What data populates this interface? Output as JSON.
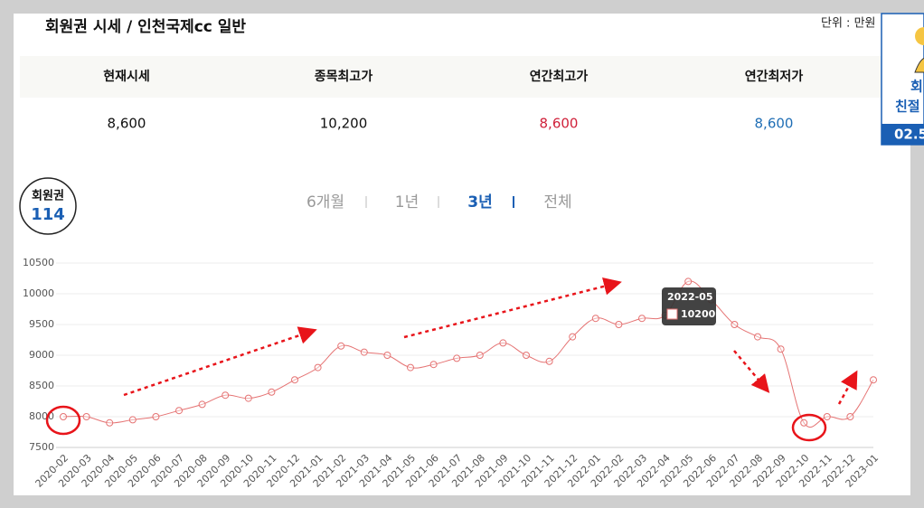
{
  "header": {
    "title": "회원권 시세 / 인천국제cc 일반",
    "unit": "단위 : 만원"
  },
  "table": {
    "headers": [
      "현재시세",
      "종목최고가",
      "연간최고가",
      "연간최저가"
    ],
    "rows": [
      [
        "8,600",
        "10,200",
        "8,600",
        "8,600"
      ]
    ]
  },
  "logo": {
    "top": "회원권",
    "bottom": "114"
  },
  "tabs": [
    "6개월",
    "1년",
    "3년",
    "전체"
  ],
  "side": {
    "lines": [
      "회",
      "친절",
      "02.5"
    ]
  },
  "chart_data": {
    "type": "line",
    "x": [
      "2020-02",
      "2020-03",
      "2020-04",
      "2020-05",
      "2020-06",
      "2020-07",
      "2020-08",
      "2020-09",
      "2020-10",
      "2020-11",
      "2020-12",
      "2021-01",
      "2021-02",
      "2021-03",
      "2021-04",
      "2021-05",
      "2021-06",
      "2021-07",
      "2021-08",
      "2021-09",
      "2021-10",
      "2021-11",
      "2021-12",
      "2022-01",
      "2022-02",
      "2022-03",
      "2022-04",
      "2022-05",
      "2022-06",
      "2022-07",
      "2022-08",
      "2022-09",
      "2022-10",
      "2022-11",
      "2022-12",
      "2023-01"
    ],
    "series": [
      {
        "name": "10200",
        "color": "#e57373",
        "values": [
          8000,
          8000,
          7900,
          7950,
          8000,
          8100,
          8200,
          8350,
          8300,
          8400,
          8600,
          8800,
          9150,
          9050,
          9000,
          8800,
          8850,
          8950,
          9000,
          9200,
          9000,
          8900,
          9300,
          9600,
          9500,
          9600,
          9650,
          10200,
          9900,
          9500,
          9300,
          9100,
          7900,
          8000,
          8000,
          8600
        ]
      }
    ],
    "ylim": [
      7500,
      10500
    ],
    "yticks": [
      7500,
      8000,
      8500,
      9000,
      9500,
      10000,
      10500
    ],
    "grid": true
  }
}
